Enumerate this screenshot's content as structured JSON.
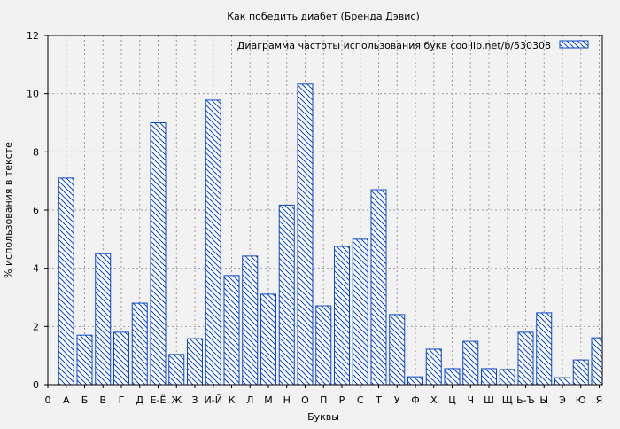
{
  "chart_data": {
    "type": "bar",
    "title": "Как победить диабет (Бренда Дэвис)",
    "xlabel": "Буквы",
    "ylabel": "% использования в тексте",
    "ylim": [
      0,
      12
    ],
    "yticks": [
      0,
      2,
      4,
      6,
      8,
      10,
      12
    ],
    "x_origin_label": "0",
    "grid": true,
    "legend": {
      "label": "Диаграмма частоты использования букв  coollib.net/b/530308",
      "placement": "top-right"
    },
    "categories": [
      "А",
      "Б",
      "В",
      "Г",
      "Д",
      "Е-Ё",
      "Ж",
      "З",
      "И-Й",
      "К",
      "Л",
      "М",
      "Н",
      "О",
      "П",
      "Р",
      "С",
      "Т",
      "У",
      "Ф",
      "Х",
      "Ц",
      "Ч",
      "Ш",
      "Щ",
      "Ь-Ъ",
      "Ы",
      "Э",
      "Ю",
      "Я"
    ],
    "values": [
      7.1,
      1.7,
      4.5,
      1.8,
      2.8,
      9.0,
      1.04,
      1.58,
      9.78,
      3.75,
      4.42,
      3.11,
      6.17,
      10.33,
      2.71,
      4.75,
      5.0,
      6.7,
      2.41,
      0.27,
      1.22,
      0.55,
      1.49,
      0.55,
      0.52,
      1.8,
      2.47,
      0.24,
      0.85,
      1.61
    ],
    "bar_color": "#0b47c8"
  }
}
